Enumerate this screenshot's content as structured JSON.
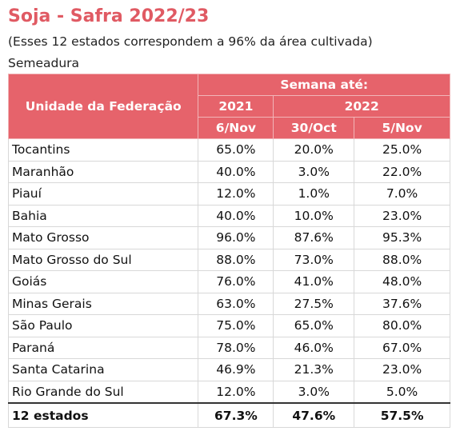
{
  "header": {
    "title": "Soja - Safra 2022/23",
    "subtitle": "(Esses 12 estados correspondem a 96% da área cultivada)",
    "section": "Semeadura"
  },
  "table": {
    "columns": {
      "state": "Unidade da Federação",
      "week": "Semana até:",
      "years": [
        "2021",
        "2022"
      ],
      "dates": [
        "6/Nov",
        "30/Oct",
        "5/Nov"
      ]
    },
    "rows": [
      [
        "Tocantins",
        "65.0%",
        "20.0%",
        "25.0%"
      ],
      [
        "Maranhão",
        "40.0%",
        "3.0%",
        "22.0%"
      ],
      [
        "Piauí",
        "12.0%",
        "1.0%",
        "7.0%"
      ],
      [
        "Bahia",
        "40.0%",
        "10.0%",
        "23.0%"
      ],
      [
        "Mato Grosso",
        "96.0%",
        "87.6%",
        "95.3%"
      ],
      [
        "Mato Grosso do Sul",
        "88.0%",
        "73.0%",
        "88.0%"
      ],
      [
        "Goiás",
        "76.0%",
        "41.0%",
        "48.0%"
      ],
      [
        "Minas Gerais",
        "63.0%",
        "27.5%",
        "37.6%"
      ],
      [
        "São Paulo",
        "75.0%",
        "65.0%",
        "80.0%"
      ],
      [
        "Paraná",
        "78.0%",
        "46.0%",
        "67.0%"
      ],
      [
        "Santa Catarina",
        "46.9%",
        "21.3%",
        "23.0%"
      ],
      [
        "Rio Grande do Sul",
        "12.0%",
        "3.0%",
        "5.0%"
      ]
    ],
    "total": [
      "12 estados",
      "67.3%",
      "47.6%",
      "57.5%"
    ]
  }
}
